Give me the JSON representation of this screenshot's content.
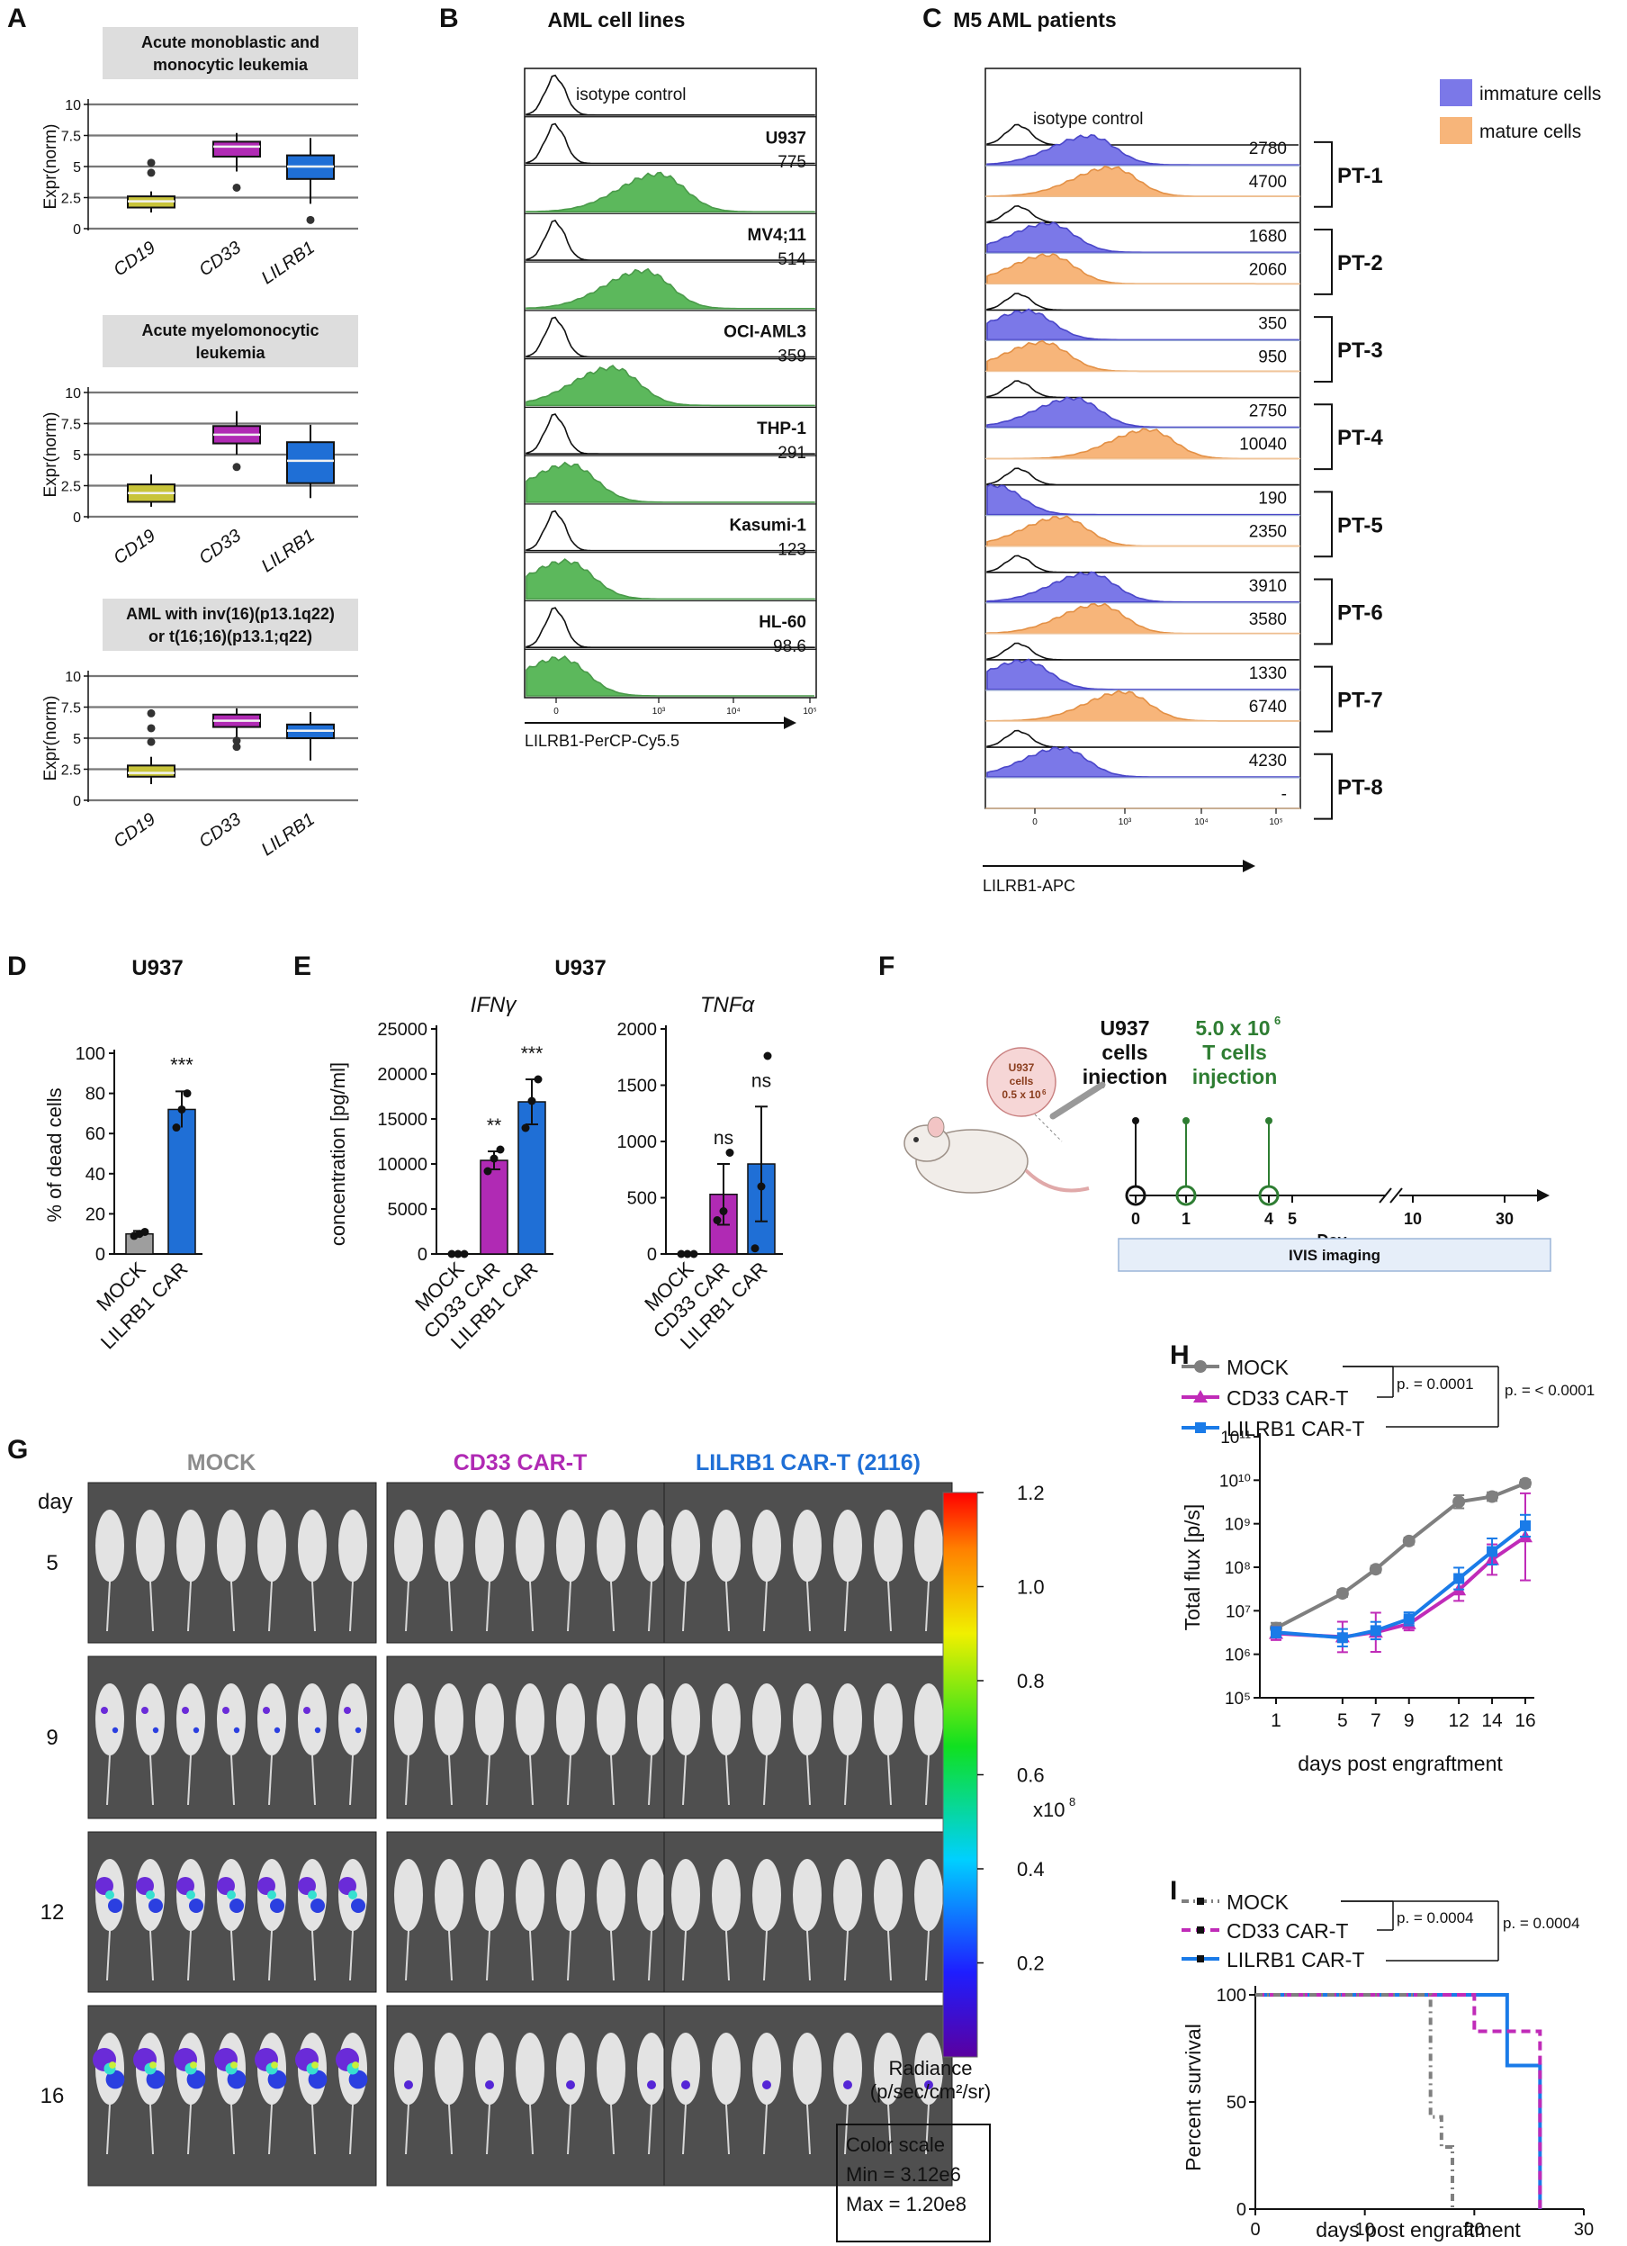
{
  "colors": {
    "cd19": "#c8c43a",
    "cd33": "#b02ab4",
    "lilrb1": "#1f6fd6",
    "histo_green": "#5cb85c",
    "immature": "#7b78e8",
    "mature": "#f7b57a",
    "mock_bar": "#9e9e9e",
    "mock_line": "#7f7f7f",
    "cd33_line": "#c02bb8",
    "lilrb1_line": "#1a7be8"
  },
  "panel_letters": [
    "A",
    "B",
    "C",
    "D",
    "E",
    "F",
    "G",
    "H",
    "I"
  ],
  "panelA": {
    "subplots": [
      {
        "title_lines": [
          "Acute monoblastic and",
          "monocytic leukemia"
        ],
        "ylabel": "Expr(norm)",
        "yticks": [
          "0",
          "2.5",
          "5",
          "7.5",
          "10"
        ],
        "categories": [
          "CD19",
          "CD33",
          "LILRB1"
        ],
        "boxes": [
          {
            "whislo": 1.3,
            "q1": 1.7,
            "med": 2.2,
            "q3": 2.6,
            "whishi": 3.0,
            "fliers": [
              4.5,
              5.3
            ]
          },
          {
            "whislo": 4.6,
            "q1": 5.8,
            "med": 6.6,
            "q3": 7.0,
            "whishi": 7.7,
            "fliers": [
              3.3
            ]
          },
          {
            "whislo": 2.0,
            "q1": 4.0,
            "med": 5.0,
            "q3": 5.9,
            "whishi": 7.3,
            "fliers": [
              0.7
            ]
          }
        ]
      },
      {
        "title_lines": [
          "Acute myelomonocytic",
          "leukemia"
        ],
        "ylabel": "Expr(norm)",
        "yticks": [
          "0",
          "2.5",
          "5",
          "7.5",
          "10"
        ],
        "categories": [
          "CD19",
          "CD33",
          "LILRB1"
        ],
        "boxes": [
          {
            "whislo": 0.8,
            "q1": 1.2,
            "med": 1.9,
            "q3": 2.6,
            "whishi": 3.4,
            "fliers": []
          },
          {
            "whislo": 5.0,
            "q1": 5.9,
            "med": 6.6,
            "q3": 7.3,
            "whishi": 8.5,
            "fliers": [
              4.0
            ]
          },
          {
            "whislo": 1.5,
            "q1": 2.7,
            "med": 4.5,
            "q3": 6.0,
            "whishi": 7.4,
            "fliers": []
          }
        ]
      },
      {
        "title_lines": [
          "AML with inv(16)(p13.1q22)",
          "or t(16;16)(p13.1;q22)"
        ],
        "ylabel": "Expr(norm)",
        "yticks": [
          "0",
          "2.5",
          "5",
          "7.5",
          "10"
        ],
        "categories": [
          "CD19",
          "CD33",
          "LILRB1"
        ],
        "boxes": [
          {
            "whislo": 1.3,
            "q1": 1.9,
            "med": 2.2,
            "q3": 2.8,
            "whishi": 3.5,
            "fliers": [
              4.7,
              5.8,
              7.0
            ]
          },
          {
            "whislo": 5.0,
            "q1": 5.9,
            "med": 6.4,
            "q3": 6.9,
            "whishi": 7.4,
            "fliers": [
              4.3,
              4.8
            ]
          },
          {
            "whislo": 3.2,
            "q1": 5.0,
            "med": 5.6,
            "q3": 6.1,
            "whishi": 7.1,
            "fliers": []
          }
        ]
      }
    ]
  },
  "panelB": {
    "title": "AML cell lines",
    "isotype_label": "isotype control",
    "xlabel": "LILRB1-PerCP-Cy5.5",
    "xticks": [
      "0",
      "10³",
      "10⁴",
      "10⁵"
    ],
    "rows": [
      {
        "name": "U937",
        "value": "775",
        "peak": 0.46
      },
      {
        "name": "MV4;11",
        "value": "514",
        "peak": 0.41
      },
      {
        "name": "OCI-AML3",
        "value": "359",
        "peak": 0.3
      },
      {
        "name": "THP-1",
        "value": "291",
        "peak": 0.15
      },
      {
        "name": "Kasumi-1",
        "value": "123",
        "peak": 0.14
      },
      {
        "name": "HL-60",
        "value": "98.6",
        "peak": 0.12
      }
    ]
  },
  "panelC": {
    "title": "M5 AML patients",
    "isotype_label": "isotype control",
    "xlabel": "LILRB1-APC",
    "xticks": [
      "0",
      "10³",
      "10⁴",
      "10⁵"
    ],
    "legend": [
      {
        "label": "immature cells",
        "color": "#7b78e8"
      },
      {
        "label": "mature cells",
        "color": "#f7b57a"
      }
    ],
    "patients": [
      {
        "id": "PT-1",
        "immature": "2780",
        "mature": "4700"
      },
      {
        "id": "PT-2",
        "immature": "1680",
        "mature": "2060"
      },
      {
        "id": "PT-3",
        "immature": "350",
        "mature": "950"
      },
      {
        "id": "PT-4",
        "immature": "2750",
        "mature": "10040"
      },
      {
        "id": "PT-5",
        "immature": "190",
        "mature": "2350"
      },
      {
        "id": "PT-6",
        "immature": "3910",
        "mature": "3580"
      },
      {
        "id": "PT-7",
        "immature": "1330",
        "mature": "6740"
      },
      {
        "id": "PT-8",
        "immature": "4230",
        "mature": "-"
      }
    ]
  },
  "panelD": {
    "title": "U937",
    "ylabel": "% of dead cells",
    "yticks": [
      "0",
      "20",
      "40",
      "60",
      "80",
      "100"
    ],
    "categories": [
      "MOCK",
      "LILRB1 CAR"
    ],
    "values": [
      10,
      72
    ],
    "errors": [
      1.5,
      9
    ],
    "points": [
      [
        9,
        10,
        11
      ],
      [
        63,
        72,
        80
      ]
    ],
    "significance": [
      "",
      "***"
    ]
  },
  "panelE": {
    "title": "U937",
    "ylabel": "concentration [pg/ml]",
    "categories": [
      "MOCK",
      "CD33 CAR",
      "LILRB1 CAR"
    ],
    "ifng": {
      "label": "IFNγ",
      "yticks": [
        "0",
        "5000",
        "10000",
        "15000",
        "20000",
        "25000"
      ],
      "values": [
        0,
        10400,
        16900
      ],
      "errors": [
        0,
        1000,
        2500
      ],
      "points": [
        [
          0,
          0,
          0
        ],
        [
          9200,
          10600,
          11600
        ],
        [
          14000,
          17000,
          19400
        ]
      ],
      "significance": [
        "",
        "**",
        "***"
      ]
    },
    "tnfa": {
      "label": "TNFα",
      "yticks": [
        "0",
        "500",
        "1000",
        "1500",
        "2000"
      ],
      "values": [
        0,
        530,
        800
      ],
      "errors": [
        0,
        270,
        510
      ],
      "points": [
        [
          0,
          0,
          0
        ],
        [
          300,
          380,
          900
        ],
        [
          50,
          600,
          1760
        ]
      ],
      "significance": [
        "",
        "ns",
        "ns"
      ]
    }
  },
  "panelF": {
    "u937_label_lines": [
      "U937",
      "cells",
      "injection"
    ],
    "tcell_label_lines": [
      "5.0 x 10",
      "T cells",
      "injection"
    ],
    "tcell_sup": "6",
    "bubble_lines": [
      "U937",
      "cells",
      "0.5 x 10"
    ],
    "bubble_sup": "6",
    "ticks": [
      "0",
      "1",
      "4",
      "5",
      "10",
      "30"
    ],
    "xlabel": "Day",
    "ivis_label": "IVIS imaging"
  },
  "panelG": {
    "day_header": "day",
    "groups": [
      "MOCK",
      "CD33 CAR-T",
      "LILRB1 CAR-T (2116)"
    ],
    "days": [
      "5",
      "9",
      "12",
      "16"
    ],
    "colorbar_ticks": [
      "0.2",
      "0.4",
      "0.6",
      "0.8",
      "1.0",
      "1.2"
    ],
    "colorbar_exp": "x10",
    "colorbar_exp_sup": "8",
    "radiance_label_lines": [
      "Radiance",
      "(p/sec/cm²/sr)"
    ],
    "scale_box_lines": [
      "Color scale",
      "Min = 3.12e6",
      "Max = 1.20e8"
    ]
  },
  "chart_data": [
    {
      "type": "line",
      "panel": "H",
      "ylabel": "Total flux [p/s]",
      "xlabel": "days post engraftment",
      "yscale": "log",
      "ylim": [
        100000,
        100000000000
      ],
      "yticks": [
        "10⁵",
        "10⁶",
        "10⁷",
        "10⁸",
        "10⁹",
        "10¹⁰",
        "10¹¹"
      ],
      "x": [
        1,
        5,
        7,
        9,
        12,
        14,
        16
      ],
      "series": [
        {
          "name": "MOCK",
          "values": [
            4000000,
            25000000,
            90000000,
            400000000,
            3200000000,
            4200000000,
            8500000000
          ],
          "errors": [
            0.12,
            0.08,
            0.08,
            0.08,
            0.15,
            0.1,
            0.08
          ]
        },
        {
          "name": "CD33 CAR-T",
          "values": [
            3000000,
            2500000,
            3200000,
            5000000,
            30000000,
            150000000,
            500000000
          ],
          "errors": [
            0.15,
            0.35,
            0.45,
            0.15,
            0.25,
            0.35,
            1.0
          ]
        },
        {
          "name": "LILRB1 CAR-T",
          "values": [
            3200000,
            2400000,
            3500000,
            6500000,
            55000000,
            230000000,
            900000000
          ],
          "errors": [
            0.12,
            0.2,
            0.2,
            0.15,
            0.25,
            0.3,
            0.25
          ]
        }
      ],
      "comparisons": [
        "p. = 0.0001",
        "p. = < 0.0001"
      ]
    },
    {
      "type": "line",
      "panel": "I",
      "ylabel": "Percent survival",
      "xlabel": "days post engraftment",
      "xlim": [
        0,
        30
      ],
      "ylim": [
        0,
        100
      ],
      "xticks": [
        "0",
        "10",
        "20",
        "30"
      ],
      "yticks": [
        "0",
        "50",
        "100"
      ],
      "series": [
        {
          "name": "MOCK",
          "steps": [
            [
              0,
              100
            ],
            [
              16,
              100
            ],
            [
              16,
              43
            ],
            [
              17,
              43
            ],
            [
              17,
              29
            ],
            [
              18,
              29
            ],
            [
              18,
              0
            ]
          ]
        },
        {
          "name": "CD33 CAR-T",
          "steps": [
            [
              0,
              100
            ],
            [
              20,
              100
            ],
            [
              20,
              83
            ],
            [
              26,
              83
            ],
            [
              26,
              0
            ]
          ]
        },
        {
          "name": "LILRB1 CAR-T",
          "steps": [
            [
              0,
              100
            ],
            [
              23,
              100
            ],
            [
              23,
              67
            ],
            [
              26,
              67
            ],
            [
              26,
              0
            ]
          ]
        }
      ],
      "comparisons": [
        "p. = 0.0004",
        "p. = 0.0004"
      ]
    }
  ]
}
